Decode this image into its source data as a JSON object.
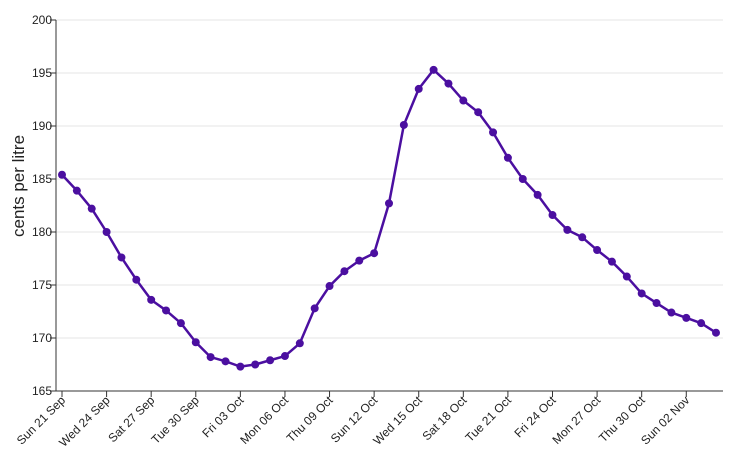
{
  "colors": {
    "series": "#4b0fa0",
    "grid": "#e6e6e6",
    "axis": "#333333"
  },
  "chart_data": {
    "type": "line",
    "title": "",
    "xlabel": "",
    "ylabel": "cents per litre",
    "ylim": [
      165,
      200
    ],
    "yticks": [
      165,
      170,
      175,
      180,
      185,
      190,
      195,
      200
    ],
    "grid": "horizontal",
    "x": [
      "2025-09-21",
      "2025-09-22",
      "2025-09-23",
      "2025-09-24",
      "2025-09-25",
      "2025-09-26",
      "2025-09-27",
      "2025-09-28",
      "2025-09-29",
      "2025-09-30",
      "2025-10-01",
      "2025-10-02",
      "2025-10-03",
      "2025-10-04",
      "2025-10-05",
      "2025-10-06",
      "2025-10-07",
      "2025-10-08",
      "2025-10-09",
      "2025-10-10",
      "2025-10-11",
      "2025-10-12",
      "2025-10-13",
      "2025-10-14",
      "2025-10-15",
      "2025-10-16",
      "2025-10-17",
      "2025-10-18",
      "2025-10-19",
      "2025-10-20",
      "2025-10-21",
      "2025-10-22",
      "2025-10-23",
      "2025-10-24",
      "2025-10-25",
      "2025-10-26",
      "2025-10-27",
      "2025-10-28",
      "2025-10-29",
      "2025-10-30",
      "2025-10-31",
      "2025-11-01",
      "2025-11-02",
      "2025-11-03",
      "2025-11-04"
    ],
    "xticks": [
      "Sun 21 Sep",
      "Wed 24 Sep",
      "Sat 27 Sep",
      "Tue 30 Sep",
      "Fri 03 Oct",
      "Mon 06 Oct",
      "Thu 09 Oct",
      "Sun 12 Oct",
      "Wed 15 Oct",
      "Sat 18 Oct",
      "Tue 21 Oct",
      "Fri 24 Oct",
      "Mon 27 Oct",
      "Thu 30 Oct",
      "Sun 02 Nov"
    ],
    "series": [
      {
        "values": [
          185.4,
          183.9,
          182.2,
          180.0,
          177.6,
          175.5,
          173.6,
          172.6,
          171.4,
          169.6,
          168.2,
          167.8,
          167.3,
          167.5,
          167.9,
          168.3,
          169.5,
          172.8,
          174.9,
          176.3,
          177.3,
          178.0,
          182.7,
          190.1,
          193.5,
          195.3,
          194.0,
          192.4,
          191.3,
          189.4,
          187.0,
          185.0,
          183.5,
          181.6,
          180.2,
          179.5,
          178.3,
          177.2,
          175.8,
          174.2,
          173.3,
          172.4,
          171.9,
          171.4,
          170.5
        ]
      }
    ]
  }
}
